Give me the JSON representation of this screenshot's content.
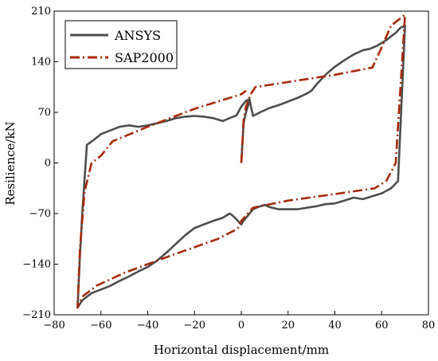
{
  "chart_data": {
    "type": "line",
    "title": "",
    "xlabel": "Horizontal displacement/mm",
    "ylabel": "Resilience/kN",
    "xlim": [
      -80,
      80
    ],
    "ylim": [
      -210,
      210
    ],
    "xticks": [
      -80,
      -60,
      -40,
      -20,
      0,
      20,
      40,
      60,
      80
    ],
    "yticks": [
      -210,
      -140,
      -70,
      0,
      70,
      140,
      210
    ],
    "xtick_labels": [
      "−80",
      "−60",
      "−40",
      "−20",
      "0",
      "20",
      "40",
      "60",
      "80"
    ],
    "ytick_labels": [
      "−210",
      "−140",
      "−70",
      "0",
      "70",
      "140",
      "210"
    ],
    "grid": false,
    "legend_position": "top-left",
    "series": [
      {
        "name": "ANSYS",
        "color": "#4d4d4d",
        "style": "solid",
        "x": [
          0,
          1,
          2,
          3,
          3.5,
          5,
          8,
          12,
          16,
          20,
          24,
          28,
          30,
          32,
          36,
          40,
          44,
          48,
          52,
          55,
          58,
          62,
          66,
          68,
          70,
          70,
          67,
          64,
          60,
          56,
          52,
          48,
          44,
          40,
          36,
          32,
          28,
          24,
          20,
          16,
          12,
          10,
          8,
          5,
          3,
          1,
          0,
          -1,
          -2,
          -4,
          -5,
          -8,
          -12,
          -16,
          -20,
          -24,
          -28,
          -32,
          -36,
          -40,
          -44,
          -48,
          -52,
          -56,
          -60,
          -64,
          -68,
          -70,
          -69,
          -68,
          -66,
          -63,
          -60,
          -56,
          -52,
          -48,
          -44,
          -40,
          -36,
          -32,
          -28,
          -24,
          -20,
          -16,
          -12,
          -8,
          -5,
          -2,
          0,
          2,
          3.5
        ],
        "y": [
          0,
          55,
          70,
          80,
          88,
          65,
          70,
          76,
          80,
          85,
          90,
          96,
          100,
          108,
          122,
          133,
          142,
          150,
          156,
          158,
          162,
          170,
          180,
          187,
          190,
          190,
          -25,
          -35,
          -42,
          -46,
          -50,
          -48,
          -52,
          -56,
          -57,
          -60,
          -62,
          -64,
          -64,
          -64,
          -61,
          -58,
          -60,
          -64,
          -72,
          -80,
          -85,
          -82,
          -78,
          -72,
          -70,
          -76,
          -80,
          -85,
          -90,
          -100,
          -112,
          -124,
          -135,
          -144,
          -150,
          -157,
          -163,
          -170,
          -175,
          -180,
          -190,
          -200,
          -130,
          -70,
          25,
          32,
          40,
          45,
          50,
          52,
          50,
          52,
          55,
          58,
          62,
          64,
          65,
          64,
          62,
          58,
          62,
          66,
          78,
          86,
          88
        ]
      },
      {
        "name": "SAP2000",
        "color": "#a52a0a",
        "style": "dashdot",
        "x": [
          0,
          1,
          2,
          4,
          6,
          20,
          40,
          56,
          60,
          64,
          68,
          70,
          70,
          66,
          62,
          57,
          40,
          20,
          5,
          0,
          -1,
          -2,
          -4,
          -10,
          -30,
          -50,
          -62,
          -64,
          -68,
          -70,
          -69,
          -67,
          -64,
          -60,
          -55,
          -40,
          -20,
          0,
          2
        ],
        "y": [
          0,
          60,
          78,
          95,
          105,
          112,
          122,
          132,
          160,
          190,
          200,
          205,
          205,
          0,
          -25,
          -35,
          -43,
          -52,
          -62,
          -80,
          -88,
          -92,
          -95,
          -105,
          -128,
          -152,
          -170,
          -175,
          -185,
          -200,
          -120,
          -40,
          0,
          10,
          30,
          50,
          75,
          95,
          100
        ]
      }
    ]
  }
}
